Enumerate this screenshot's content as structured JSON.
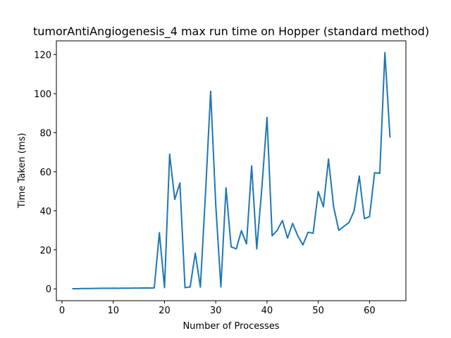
{
  "chart_data": {
    "type": "line",
    "title": "tumorAntiAngiogenesis_4 max run time on Hopper (standard method)",
    "xlabel": "Number of Processes",
    "ylabel": "Time Taken (ms)",
    "xlim": [
      -1.1,
      67.1
    ],
    "ylim": [
      -6.05,
      127.05
    ],
    "xticks": [
      0,
      10,
      20,
      30,
      40,
      50,
      60
    ],
    "yticks": [
      0,
      20,
      40,
      60,
      80,
      100,
      120
    ],
    "grid": false,
    "color": "#1f77b4",
    "series": [
      {
        "x": [
          2,
          3,
          4,
          5,
          6,
          7,
          8,
          9,
          10,
          11,
          12,
          13,
          14,
          15,
          16,
          17,
          18,
          19,
          20,
          21,
          22,
          23,
          24,
          25,
          26,
          27,
          28,
          29,
          30,
          31,
          32,
          33,
          34,
          35,
          36,
          37,
          38,
          39,
          40,
          41,
          42,
          43,
          44,
          45,
          46,
          47,
          48,
          49,
          50,
          51,
          52,
          53,
          54,
          55,
          56,
          57,
          58,
          59,
          60,
          61,
          62,
          63,
          64
        ],
        "y": [
          0.1,
          0.1,
          0.15,
          0.15,
          0.2,
          0.25,
          0.3,
          0.3,
          0.35,
          0.3,
          0.35,
          0.35,
          0.4,
          0.4,
          0.5,
          0.45,
          0.5,
          28.8,
          0.6,
          69.0,
          45.8,
          54.2,
          0.6,
          1.0,
          18.3,
          0.9,
          49.0,
          101.2,
          43.0,
          1.0,
          51.8,
          21.5,
          20.5,
          29.8,
          23.0,
          63.0,
          20.5,
          52.0,
          87.8,
          27.2,
          30.0,
          35.0,
          26.0,
          33.5,
          27.2,
          22.5,
          29.0,
          28.5,
          49.8,
          42.0,
          66.5,
          42.0,
          30.0,
          32.0,
          34.0,
          40.0,
          57.8,
          36.0,
          37.0,
          59.5,
          59.2,
          121.0,
          77.5
        ]
      }
    ]
  }
}
